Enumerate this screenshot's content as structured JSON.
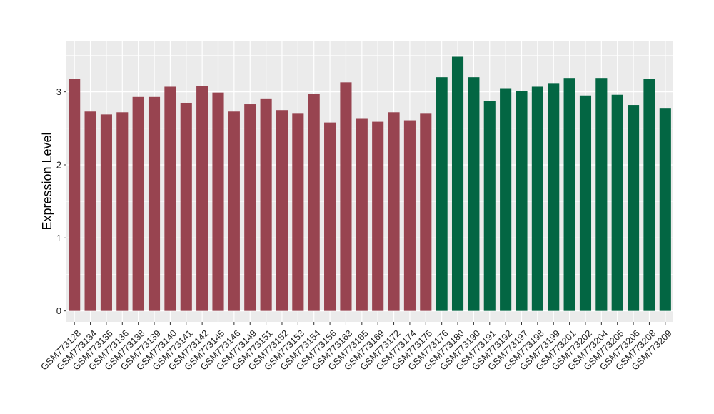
{
  "chart_data": {
    "type": "bar",
    "ylabel": "Expression Level",
    "xlabel": "",
    "title": "",
    "ylim": [
      -0.15,
      3.7
    ],
    "yticks": [
      0,
      1,
      2,
      3
    ],
    "grid": true,
    "panel_background": "#ebebeb",
    "grid_color": "#ffffff",
    "categories": [
      "GSM773128",
      "GSM773134",
      "GSM773135",
      "GSM773136",
      "GSM773138",
      "GSM773139",
      "GSM773140",
      "GSM773141",
      "GSM773142",
      "GSM773145",
      "GSM773146",
      "GSM773149",
      "GSM773151",
      "GSM773152",
      "GSM773153",
      "GSM773154",
      "GSM773156",
      "GSM773163",
      "GSM773165",
      "GSM773169",
      "GSM773172",
      "GSM773174",
      "GSM773175",
      "GSM773176",
      "GSM773180",
      "GSM773190",
      "GSM773191",
      "GSM773192",
      "GSM773197",
      "GSM773198",
      "GSM773199",
      "GSM773201",
      "GSM773202",
      "GSM773204",
      "GSM773205",
      "GSM773206",
      "GSM773208",
      "GSM773209"
    ],
    "values": [
      3.18,
      2.73,
      2.69,
      2.72,
      2.93,
      2.93,
      3.07,
      2.85,
      3.08,
      2.99,
      2.73,
      2.83,
      2.91,
      2.75,
      2.7,
      2.97,
      2.58,
      3.13,
      2.63,
      2.59,
      2.72,
      2.61,
      2.7,
      3.2,
      3.48,
      3.2,
      2.87,
      3.05,
      3.01,
      3.07,
      3.12,
      3.19,
      2.95,
      3.19,
      2.96,
      2.82,
      3.18,
      2.77
    ],
    "groups": [
      {
        "color": "#984450",
        "count": 23
      },
      {
        "color": "#036643",
        "count": 15
      }
    ]
  }
}
